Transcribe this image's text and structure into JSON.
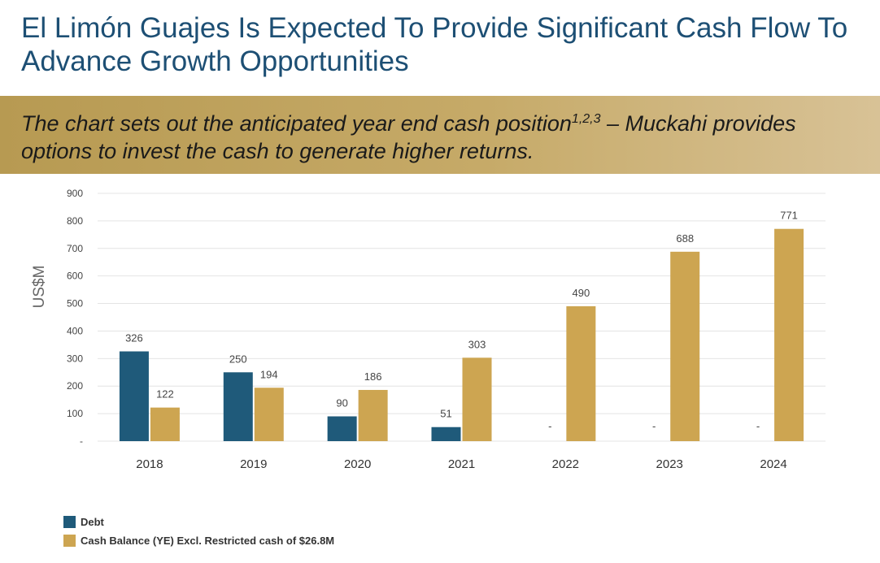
{
  "slide": {
    "title": "El Limón Guajes Is Expected To Provide Significant Cash Flow To Advance Growth Opportunities",
    "subtitle_main": "The chart sets out the anticipated year end cash position",
    "subtitle_sup": "1,2,3",
    "subtitle_rest": " – Muckahi provides options to invest the cash to generate higher returns."
  },
  "colors": {
    "debt": "#1f5a7a",
    "cash": "#cda551",
    "title": "#1d4f74",
    "grid": "#e4e4e4",
    "axis_text": "#444444"
  },
  "chart_data": {
    "type": "bar",
    "categories": [
      "2018",
      "2019",
      "2020",
      "2021",
      "2022",
      "2023",
      "2024"
    ],
    "series": [
      {
        "name": "Debt",
        "values": [
          326,
          250,
          90,
          51,
          null,
          null,
          null
        ]
      },
      {
        "name": "Cash Balance (YE) Excl. Restricted cash of $26.8M",
        "values": [
          122,
          194,
          186,
          303,
          490,
          688,
          771
        ]
      }
    ],
    "ylabel": "US$M",
    "ylim": [
      0,
      900
    ],
    "yticks": [
      "-",
      "100",
      "200",
      "300",
      "400",
      "500",
      "600",
      "700",
      "800",
      "900"
    ],
    "empty_label": "-",
    "grid": true,
    "legend_position": "bottom-left"
  }
}
